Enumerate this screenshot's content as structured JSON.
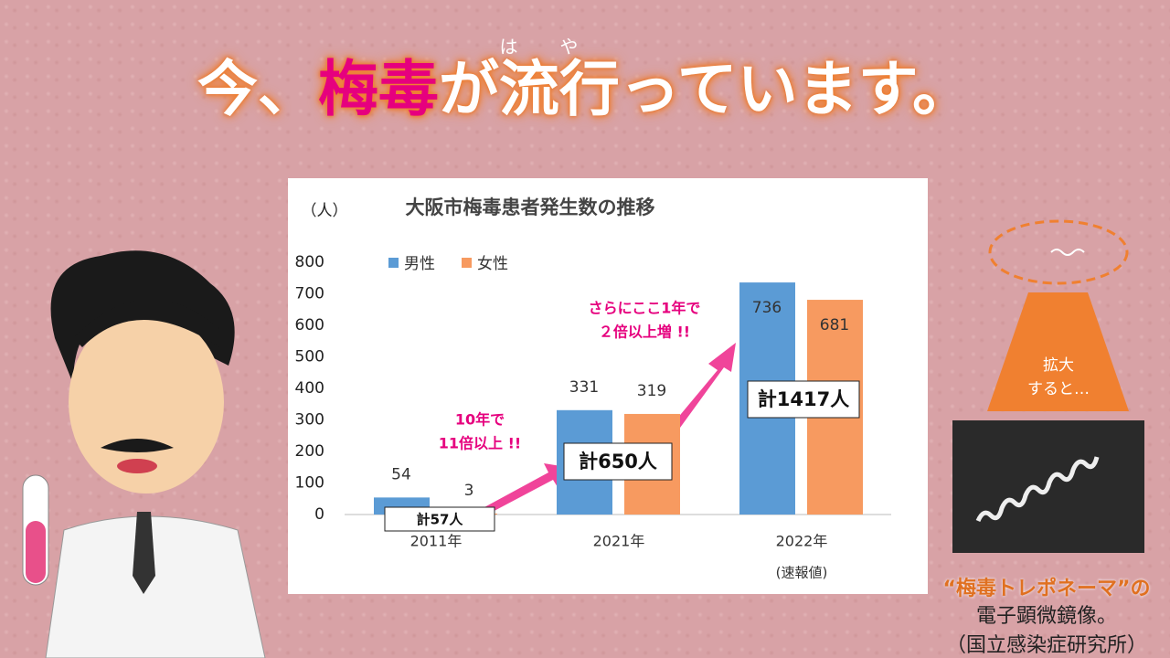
{
  "headline": {
    "part1": "今、",
    "part2": "梅毒",
    "part3": "が",
    "part4": "流行",
    "ruby": "はや",
    "part5": "っています。"
  },
  "chart_data": {
    "type": "bar",
    "title": "大阪市梅毒患者発生数の推移",
    "y_unit": "（人）",
    "categories": [
      "2011年",
      "2021年",
      "2022年"
    ],
    "x_note": "(速報値)",
    "series": [
      {
        "name": "男性",
        "color": "#5b9bd5",
        "values": [
          54,
          331,
          736
        ]
      },
      {
        "name": "女性",
        "color": "#f79a60",
        "values": [
          3,
          319,
          681
        ]
      }
    ],
    "ylim": [
      0,
      800
    ],
    "yticks": [
      0,
      100,
      200,
      300,
      400,
      500,
      600,
      700,
      800
    ],
    "grid": false,
    "annotations": {
      "totals": [
        "計57人",
        "計650人",
        "計1417人"
      ],
      "note1": [
        "10年で",
        "11倍以上 !!"
      ],
      "note2": [
        "さらにここ1年で",
        "２倍以上増 !!"
      ]
    }
  },
  "side": {
    "zoom": [
      "拡大",
      "すると…"
    ],
    "caption": [
      "“梅毒トレポネーマ”の",
      "電子顕微鏡像。",
      "（国立感染症研究所）"
    ]
  }
}
